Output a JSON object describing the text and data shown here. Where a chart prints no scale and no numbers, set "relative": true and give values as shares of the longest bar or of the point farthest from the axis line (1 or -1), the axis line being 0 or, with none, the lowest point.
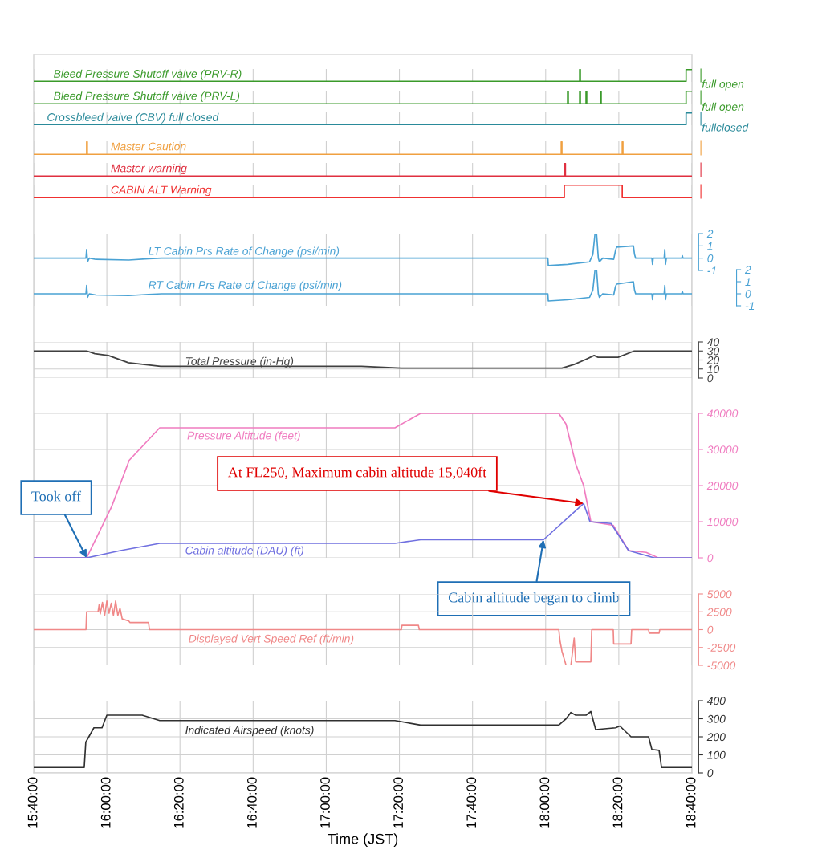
{
  "chart_data": [
    {
      "type": "line",
      "relative": true,
      "tick_labels": false,
      "grid": "x",
      "xlim": [
        15.6667,
        18.6667
      ],
      "annotations": [
        "full open"
      ],
      "series": [
        {
          "name": "Bleed Pressure Shutoff valve (PRV-R)",
          "color": "#3a9a2a",
          "x": [
            15.6667,
            18.155,
            18.155,
            18.158,
            18.158,
            18.64,
            18.64,
            18.6667
          ],
          "values": [
            0,
            0,
            1,
            1,
            0,
            0,
            1,
            1
          ]
        }
      ]
    },
    {
      "type": "line",
      "relative": true,
      "tick_labels": false,
      "grid": "x",
      "xlim": [
        15.6667,
        18.6667
      ],
      "annotations": [
        "full open"
      ],
      "series": [
        {
          "name": "Bleed Pressure Shutoff valve (PRV-L)",
          "color": "#3a9a2a",
          "x": [
            15.6667,
            18.1,
            18.1,
            18.103,
            18.103,
            18.155,
            18.155,
            18.158,
            18.158,
            18.184,
            18.184,
            18.187,
            18.187,
            18.25,
            18.25,
            18.253,
            18.253,
            18.64,
            18.64,
            18.6667
          ],
          "values": [
            0,
            0,
            1,
            1,
            0,
            0,
            1,
            1,
            0,
            0,
            1,
            1,
            0,
            0,
            1,
            1,
            0,
            0,
            1,
            1
          ]
        }
      ]
    },
    {
      "type": "line",
      "relative": true,
      "tick_labels": false,
      "grid": "x",
      "xlim": [
        15.6667,
        18.6667
      ],
      "annotations": [
        "fullclosed"
      ],
      "series": [
        {
          "name": "Crossbleed valve (CBV) full closed",
          "color": "#2a8a9a",
          "x": [
            15.6667,
            17.0,
            18.64,
            18.64,
            18.6667
          ],
          "values": [
            0,
            0,
            0,
            1,
            1
          ]
        }
      ]
    },
    {
      "type": "line",
      "relative": true,
      "tick_labels": false,
      "grid": "x",
      "xlim": [
        15.6667,
        18.6667
      ],
      "series": [
        {
          "name": "Master Caution",
          "color": "#f0a040",
          "x": [
            15.6667,
            15.908,
            15.908,
            15.911,
            15.911,
            18.071,
            18.071,
            18.074,
            18.074,
            18.349,
            18.349,
            18.352,
            18.352,
            18.6667
          ],
          "values": [
            0,
            0,
            1,
            1,
            0,
            0,
            1,
            1,
            0,
            0,
            1,
            1,
            0,
            0
          ]
        }
      ]
    },
    {
      "type": "line",
      "relative": true,
      "tick_labels": false,
      "grid": "x",
      "xlim": [
        15.6667,
        18.6667
      ],
      "series": [
        {
          "name": "Master warning",
          "color": "#e03040",
          "x": [
            15.6667,
            18.085,
            18.085,
            18.09,
            18.09,
            18.6667
          ],
          "values": [
            0,
            0,
            1,
            1,
            0,
            0
          ]
        }
      ]
    },
    {
      "type": "line",
      "relative": true,
      "tick_labels": false,
      "grid": "x",
      "xlim": [
        15.6667,
        18.6667
      ],
      "series": [
        {
          "name": "CABIN ALT Warning",
          "color": "#f03030",
          "x": [
            15.6667,
            18.085,
            18.085,
            18.349,
            18.349,
            18.6667
          ],
          "values": [
            0,
            0,
            1,
            1,
            0,
            0
          ]
        }
      ]
    },
    {
      "type": "line",
      "tick_labels": "y",
      "grid": "x",
      "xlim": [
        15.6667,
        18.6667
      ],
      "ylim": [
        -1,
        2
      ],
      "yticks": [
        -1,
        0,
        1,
        2
      ],
      "series": [
        {
          "name": "LT Cabin Prs Rate of Change (psi/min)",
          "color": "#4aa2d4",
          "x": [
            15.6667,
            15.905,
            15.908,
            15.912,
            15.92,
            15.95,
            16.1,
            16.19,
            16.25,
            18.01,
            18.012,
            18.1,
            18.2,
            18.215,
            18.225,
            18.232,
            18.24,
            18.245,
            18.26,
            18.31,
            18.318,
            18.323,
            18.4,
            18.405,
            18.41,
            18.484,
            18.487,
            18.49,
            18.54,
            18.543,
            18.546,
            18.55,
            18.62,
            18.623,
            18.626,
            18.6667
          ],
          "values": [
            0,
            0,
            0.7,
            -0.3,
            0,
            -0.1,
            -0.15,
            -0.05,
            0,
            0,
            -0.6,
            -0.5,
            -0.3,
            0.3,
            2,
            2,
            0,
            -0.3,
            0,
            -0.1,
            0.6,
            0.9,
            1,
            0.3,
            0,
            0,
            -0.5,
            0,
            0,
            0.7,
            -0.5,
            0,
            0,
            0.2,
            0,
            0
          ]
        }
      ]
    },
    {
      "type": "line",
      "tick_labels": "y",
      "grid": "x",
      "xlim": [
        15.6667,
        18.6667
      ],
      "ylim": [
        -1,
        2
      ],
      "yticks": [
        -1,
        0,
        1,
        2
      ],
      "series": [
        {
          "name": "RT Cabin Prs Rate of Change (psi/min)",
          "color": "#4aa2d4",
          "x": [
            15.6667,
            15.905,
            15.908,
            15.912,
            15.92,
            15.95,
            16.1,
            16.19,
            16.25,
            18.01,
            18.012,
            18.1,
            18.2,
            18.215,
            18.225,
            18.232,
            18.24,
            18.245,
            18.26,
            18.31,
            18.318,
            18.323,
            18.4,
            18.405,
            18.41,
            18.484,
            18.487,
            18.49,
            18.54,
            18.543,
            18.546,
            18.55,
            18.62,
            18.623,
            18.626,
            18.6667
          ],
          "values": [
            0,
            0,
            0.7,
            -0.3,
            0,
            -0.1,
            -0.15,
            -0.05,
            0,
            0,
            -0.6,
            -0.5,
            -0.3,
            0.3,
            2,
            2,
            0,
            -0.3,
            0,
            -0.1,
            0.6,
            0.8,
            1,
            0.3,
            0,
            0,
            -0.5,
            0,
            0,
            0.7,
            -0.5,
            0,
            0,
            0.2,
            0,
            0
          ]
        }
      ]
    },
    {
      "type": "line",
      "tick_labels": "y",
      "grid": true,
      "xlim": [
        15.6667,
        18.6667
      ],
      "ylim": [
        0,
        40
      ],
      "yticks": [
        0,
        10,
        20,
        30,
        40
      ],
      "series": [
        {
          "name": "Total Pressure (in-Hg)",
          "color": "#404040",
          "x": [
            15.6667,
            15.908,
            15.945,
            16.007,
            16.098,
            16.245,
            17.16,
            17.342,
            18.074,
            18.129,
            18.177,
            18.221,
            18.239,
            18.33,
            18.404,
            18.6667
          ],
          "values": [
            30,
            30,
            27,
            25,
            17,
            13,
            13,
            11,
            11,
            15,
            20,
            25,
            23,
            23,
            30,
            30
          ]
        }
      ]
    },
    {
      "type": "line",
      "tick_labels": "y",
      "grid": true,
      "xlim": [
        15.6667,
        18.6667
      ],
      "ylim": [
        0,
        40000
      ],
      "yticks": [
        0,
        10000,
        20000,
        30000,
        40000
      ],
      "annotations": [
        {
          "text": "Took off",
          "x": 15.908,
          "y": 0
        },
        {
          "text": "At FL250, Maximum cabin altitude 15,040ft",
          "x": 18.173,
          "y": 15040
        },
        {
          "text": "Cabin altitude began to climb",
          "x": 17.99,
          "y": 5000
        }
      ],
      "series": [
        {
          "name": "Pressure Altitude (feet)",
          "color": "#f07cc0",
          "x": [
            15.6667,
            15.908,
            16.022,
            16.102,
            16.241,
            17.313,
            17.43,
            18.06,
            18.093,
            18.137,
            18.173,
            18.206,
            18.308,
            18.378,
            18.458,
            18.513,
            18.6667
          ],
          "values": [
            0,
            0,
            14200,
            27000,
            36000,
            36000,
            40000,
            40000,
            37000,
            26000,
            20000,
            10000,
            9000,
            2000,
            1500,
            0,
            0
          ]
        },
        {
          "name": "Cabin altitude (DAU) (ft)",
          "color": "#7070e0",
          "x": [
            15.6667,
            15.908,
            16.062,
            16.241,
            17.313,
            17.43,
            17.99,
            18.173,
            18.202,
            18.298,
            18.378,
            18.495,
            18.6667
          ],
          "values": [
            0,
            0,
            2000,
            4000,
            4000,
            5000,
            5000,
            15040,
            10000,
            9500,
            2000,
            0,
            0
          ]
        }
      ]
    },
    {
      "type": "line",
      "tick_labels": "y",
      "grid": true,
      "xlim": [
        15.6667,
        18.6667
      ],
      "ylim": [
        -5000,
        5000
      ],
      "yticks": [
        -5000,
        -2500,
        0,
        2500,
        5000
      ],
      "series": [
        {
          "name": "Displayed Vert Speed Ref (ft/min)",
          "color": "#f08888",
          "x": [
            15.6667,
            15.905,
            15.908,
            15.96,
            15.965,
            15.97,
            15.98,
            15.99,
            16.0,
            16.01,
            16.02,
            16.03,
            16.04,
            16.05,
            16.06,
            16.07,
            16.1,
            16.105,
            16.19,
            16.194,
            17.342,
            17.345,
            17.42,
            17.424,
            18.06,
            18.065,
            18.074,
            18.093,
            18.115,
            18.13,
            18.137,
            18.15,
            18.206,
            18.21,
            18.308,
            18.31,
            18.389,
            18.392,
            18.469,
            18.472,
            18.517,
            18.52,
            18.6667
          ],
          "values": [
            0,
            0,
            2500,
            2500,
            3500,
            2200,
            3800,
            2000,
            4000,
            2300,
            3700,
            2000,
            4000,
            2000,
            3000,
            1500,
            1200,
            1000,
            1000,
            0,
            0,
            600,
            600,
            0,
            0,
            -1500,
            -3000,
            -5000,
            -5000,
            -1200,
            -4500,
            -4500,
            -4500,
            0,
            0,
            -2000,
            -2000,
            0,
            0,
            -500,
            -500,
            0,
            0
          ]
        }
      ]
    },
    {
      "type": "line",
      "grid": true,
      "xlabel": "Time (JST)",
      "xlim": [
        15.6667,
        18.6667
      ],
      "xticks": [
        {
          "value": 15.6667,
          "label": "15:40:00"
        },
        {
          "value": 16,
          "label": "16:00:00"
        },
        {
          "value": 16.3333,
          "label": "16:20:00"
        },
        {
          "value": 16.6667,
          "label": "16:40:00"
        },
        {
          "value": 17,
          "label": "17:00:00"
        },
        {
          "value": 17.3333,
          "label": "17:20:00"
        },
        {
          "value": 17.6667,
          "label": "17:40:00"
        },
        {
          "value": 18,
          "label": "18:00:00"
        },
        {
          "value": 18.3333,
          "label": "18:20:00"
        },
        {
          "value": 18.6667,
          "label": "18:40:00"
        }
      ],
      "ylim": [
        0,
        400
      ],
      "yticks": [
        0,
        100,
        200,
        300,
        400
      ],
      "series": [
        {
          "name": "Indicated Airspeed (knots)",
          "color": "#303030",
          "x": [
            15.6667,
            15.897,
            15.904,
            15.941,
            15.978,
            16.0,
            16.161,
            16.241,
            17.313,
            17.43,
            18.06,
            18.093,
            18.115,
            18.137,
            18.184,
            18.206,
            18.228,
            18.319,
            18.338,
            18.389,
            18.469,
            18.484,
            18.517,
            18.528,
            18.6667
          ],
          "values": [
            30,
            30,
            170,
            250,
            250,
            320,
            320,
            290,
            290,
            265,
            265,
            300,
            335,
            320,
            320,
            340,
            240,
            250,
            260,
            200,
            200,
            130,
            125,
            30,
            30
          ]
        }
      ]
    }
  ]
}
